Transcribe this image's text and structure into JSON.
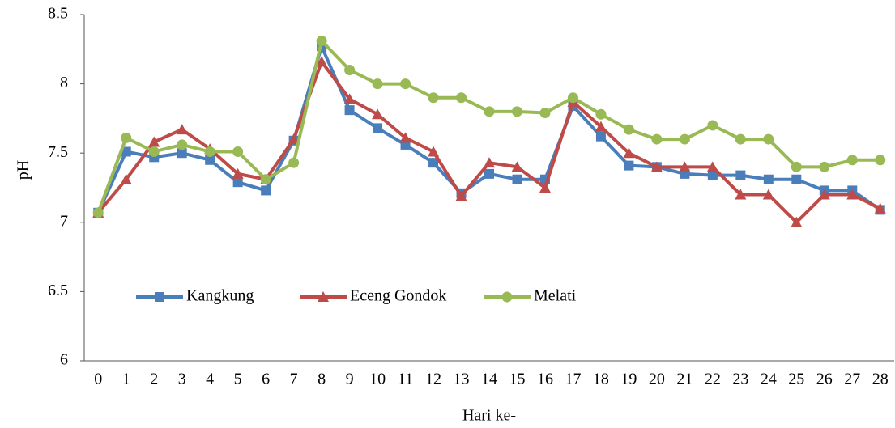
{
  "chart_data": {
    "type": "line",
    "y_label": "pH",
    "x_label": "Hari ke-",
    "categories": [
      "0",
      "1",
      "2",
      "3",
      "4",
      "5",
      "6",
      "7",
      "8",
      "9",
      "10",
      "11",
      "12",
      "13",
      "14",
      "15",
      "16",
      "17",
      "18",
      "19",
      "20",
      "21",
      "22",
      "23",
      "24",
      "25",
      "26",
      "27",
      "28"
    ],
    "series": [
      {
        "name": "Kangkung",
        "color": "#4a7ebb",
        "marker": "square",
        "values": [
          7.07,
          7.51,
          7.47,
          7.5,
          7.45,
          7.29,
          7.23,
          7.59,
          8.27,
          7.81,
          7.68,
          7.56,
          7.43,
          7.21,
          7.35,
          7.31,
          7.31,
          7.84,
          7.62,
          7.41,
          7.4,
          7.35,
          7.34,
          7.34,
          7.31,
          7.31,
          7.23,
          7.23,
          7.09
        ]
      },
      {
        "name": "Eceng Gondok",
        "color": "#be4b48",
        "marker": "triangle",
        "values": [
          7.07,
          7.31,
          7.58,
          7.67,
          7.53,
          7.35,
          7.31,
          7.6,
          8.16,
          7.89,
          7.78,
          7.61,
          7.51,
          7.19,
          7.43,
          7.4,
          7.25,
          7.87,
          7.69,
          7.5,
          7.4,
          7.4,
          7.4,
          7.2,
          7.2,
          7.0,
          7.2,
          7.2,
          7.1
        ]
      },
      {
        "name": "Melati",
        "color": "#98b954",
        "marker": "circle",
        "values": [
          7.07,
          7.61,
          7.51,
          7.56,
          7.51,
          7.51,
          7.31,
          7.43,
          8.31,
          8.1,
          8.0,
          8.0,
          7.9,
          7.9,
          7.8,
          7.8,
          7.79,
          7.9,
          7.78,
          7.67,
          7.6,
          7.6,
          7.7,
          7.6,
          7.6,
          7.4,
          7.4,
          7.45,
          7.45
        ]
      }
    ],
    "ylim": [
      6,
      8.5
    ],
    "yticks": [
      6,
      6.5,
      7,
      7.5,
      8,
      8.5
    ],
    "grid": false,
    "legend": "lower left"
  }
}
